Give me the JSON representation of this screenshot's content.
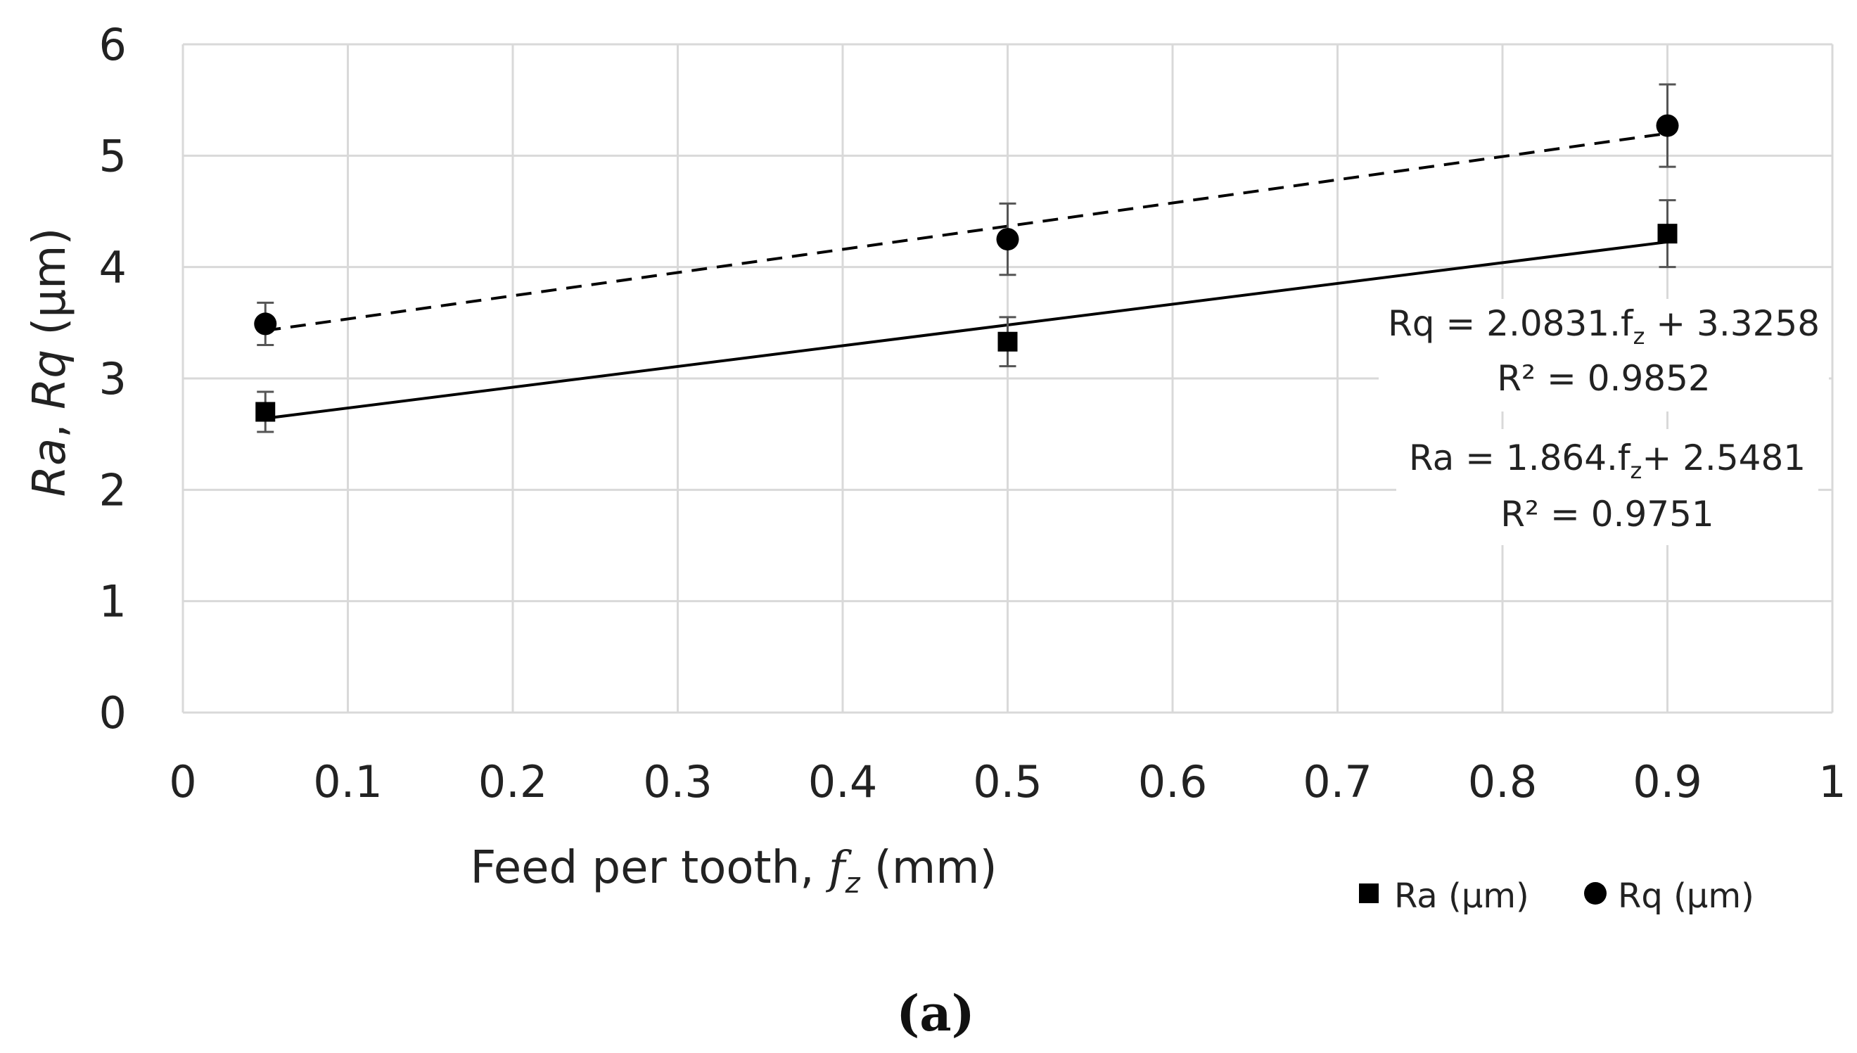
{
  "chart_data": {
    "type": "scatter",
    "title": "",
    "xlabel": "Feed per tooth, ",
    "xlabel_symbol": "f",
    "xlabel_subscript": "z",
    "xlabel_unit": " (mm)",
    "ylabel_part1": "Ra",
    "ylabel_sep": ", ",
    "ylabel_part2": "Rq",
    "ylabel_unit": " (μm)",
    "xlim": [
      0,
      1
    ],
    "ylim": [
      0,
      6
    ],
    "xticks": [
      0,
      0.1,
      0.2,
      0.3,
      0.4,
      0.5,
      0.6,
      0.7,
      0.8,
      0.9,
      1
    ],
    "xtick_labels": [
      "0",
      "0.1",
      "0.2",
      "0.3",
      "0.4",
      "0.5",
      "0.6",
      "0.7",
      "0.8",
      "0.9",
      "1"
    ],
    "yticks": [
      0,
      1,
      2,
      3,
      4,
      5,
      6
    ],
    "ytick_labels": [
      "0",
      "1",
      "2",
      "3",
      "4",
      "5",
      "6"
    ],
    "grid": true,
    "series": [
      {
        "name": "Ra (μm)",
        "marker": "square",
        "x": [
          0.05,
          0.5,
          0.9
        ],
        "y": [
          2.7,
          3.33,
          4.3
        ],
        "yerr": [
          0.18,
          0.22,
          0.3
        ],
        "trend": {
          "slope": 1.864,
          "intercept": 2.5481,
          "style": "solid"
        }
      },
      {
        "name": "Rq (μm)",
        "marker": "circle",
        "x": [
          0.05,
          0.5,
          0.9
        ],
        "y": [
          3.49,
          4.25,
          5.27
        ],
        "yerr": [
          0.19,
          0.32,
          0.37
        ],
        "trend": {
          "slope": 2.0831,
          "intercept": 3.3258,
          "style": "dashed"
        }
      }
    ],
    "annotations": {
      "rq_eq_pre": "Rq = 2.0831.f",
      "rq_eq_sub": "z",
      "rq_eq_post": " + 3.3258",
      "rq_r2": "R² = 0.9852",
      "ra_eq_pre": "Ra = 1.864.f",
      "ra_eq_sub": "z",
      "ra_eq_post": "+ 2.5481",
      "ra_r2": "R² = 0.9751"
    },
    "legend": [
      {
        "label": "Ra (μm)",
        "marker": "square"
      },
      {
        "label": "Rq (μm)",
        "marker": "circle"
      }
    ],
    "legend_position": "bottom-right",
    "caption": "(a)",
    "colors": {
      "grid": "#d9d9d9",
      "series": "#000000",
      "errorbar": "#555555",
      "text": "#222222"
    }
  }
}
